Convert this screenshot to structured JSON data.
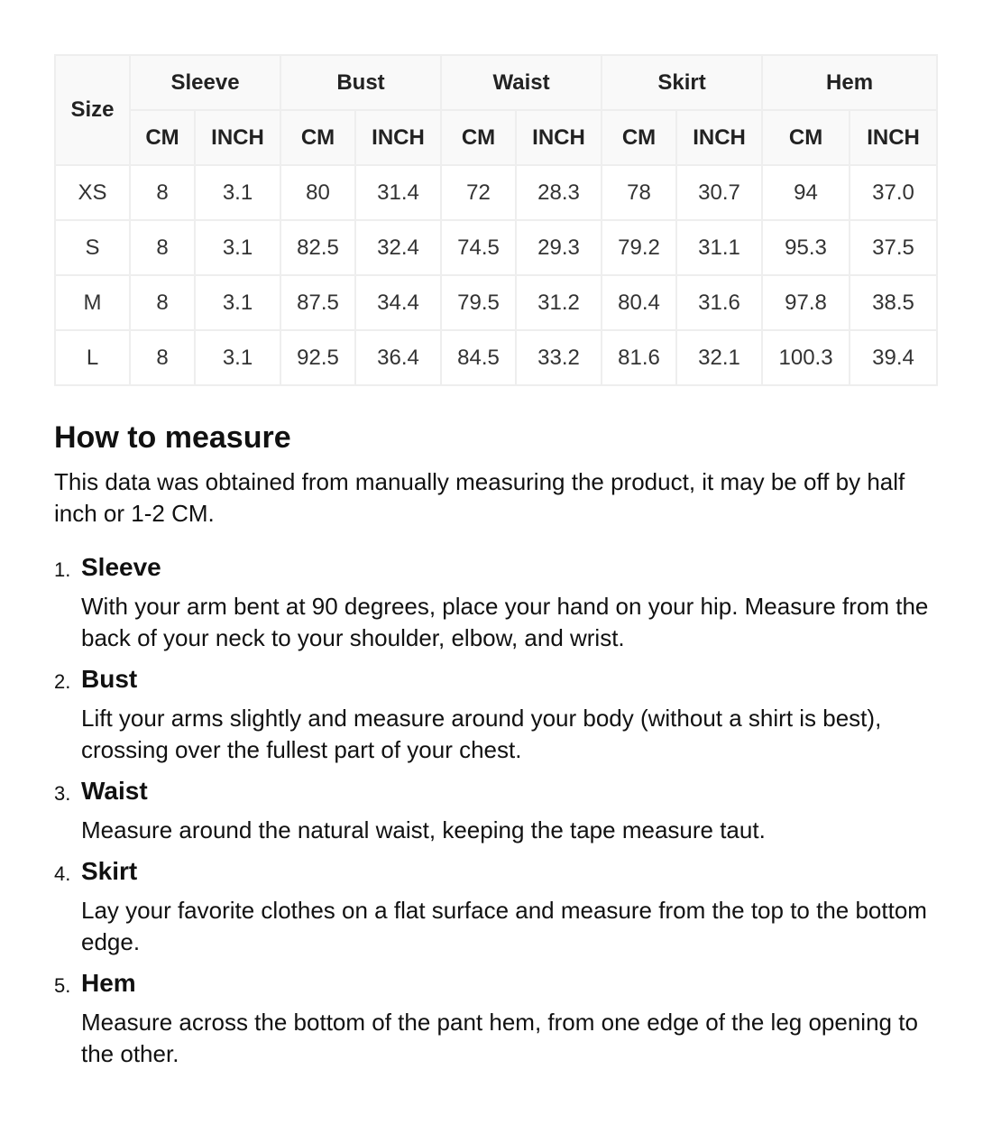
{
  "table": {
    "size_header": "Size",
    "groups": [
      "Sleeve",
      "Bust",
      "Waist",
      "Skirt",
      "Hem"
    ],
    "units": [
      "CM",
      "INCH"
    ],
    "rows": [
      [
        "XS",
        "8",
        "3.1",
        "80",
        "31.4",
        "72",
        "28.3",
        "78",
        "30.7",
        "94",
        "37.0"
      ],
      [
        "S",
        "8",
        "3.1",
        "82.5",
        "32.4",
        "74.5",
        "29.3",
        "79.2",
        "31.1",
        "95.3",
        "37.5"
      ],
      [
        "M",
        "8",
        "3.1",
        "87.5",
        "34.4",
        "79.5",
        "31.2",
        "80.4",
        "31.6",
        "97.8",
        "38.5"
      ],
      [
        "L",
        "8",
        "3.1",
        "92.5",
        "36.4",
        "84.5",
        "33.2",
        "81.6",
        "32.1",
        "100.3",
        "39.4"
      ]
    ]
  },
  "guide": {
    "title": "How to measure",
    "intro": "This data was obtained from manually measuring the product, it may be off by half inch or 1-2 CM.",
    "items": [
      {
        "num": "1.",
        "title": "Sleeve",
        "desc": "With your arm bent at 90 degrees, place your hand on your hip. Measure from the back of your neck to your shoulder, elbow, and wrist."
      },
      {
        "num": "2.",
        "title": "Bust",
        "desc": "Lift your arms slightly and measure around your body (without a shirt is best), crossing over the fullest part of your chest."
      },
      {
        "num": "3.",
        "title": "Waist",
        "desc": "Measure around the natural waist, keeping the tape measure taut."
      },
      {
        "num": "4.",
        "title": "Skirt",
        "desc": "Lay your favorite clothes on a flat surface and measure from the top to the bottom edge."
      },
      {
        "num": "5.",
        "title": "Hem",
        "desc": "Measure across the bottom of the pant hem, from one edge of the leg opening to the other."
      }
    ]
  }
}
